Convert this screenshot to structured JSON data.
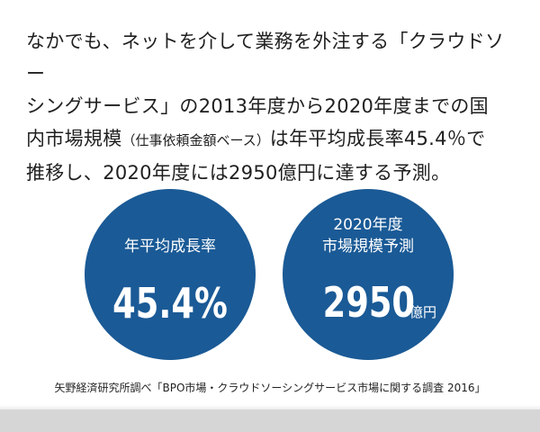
{
  "body": {
    "line1": "なかでも、ネットを介して業務を外注する「クラウドソー",
    "line2": "シングサービス」の2013年度から2020年度までの国",
    "line3_part1": "内市場規模",
    "line3_small": "（仕事依頼金額ベース）",
    "line3_part2": "は年平均成長率45.4％で",
    "line4": "推移し、2020年度には2950億円に達する予測。"
  },
  "stats": [
    {
      "label": "年平均成長率",
      "value": "45.4%"
    },
    {
      "label_line1": "2020年度",
      "label_line2": "市場規模予測",
      "value": "2950",
      "unit": "億円"
    }
  ],
  "source": "矢野経済研究所調べ「BPO市場・クラウドソーシングサービス市場に関する調査 2016」",
  "colors": {
    "circle": "#1a5a96",
    "background": "#ffffff",
    "bottom_bar": "#d6d6d6"
  }
}
